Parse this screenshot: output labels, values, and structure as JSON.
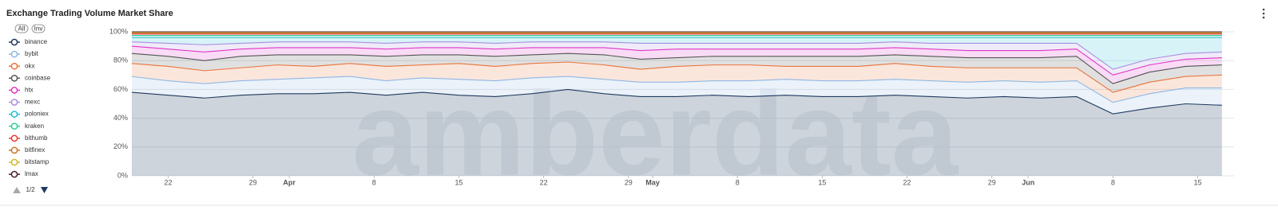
{
  "chart_data": {
    "type": "stacked-area",
    "title": "Exchange Trading Volume Market Share",
    "watermark": "amberdata",
    "buttons": [
      "All",
      "Inv"
    ],
    "legend_page": "1/2",
    "legend": "left",
    "grid": true,
    "x": [
      "03-19",
      "03-22",
      "03-25",
      "03-28",
      "03-31",
      "04-03",
      "04-06",
      "04-09",
      "04-12",
      "04-15",
      "04-18",
      "04-21",
      "04-24",
      "04-27",
      "04-30",
      "05-03",
      "05-06",
      "05-09",
      "05-12",
      "05-15",
      "05-18",
      "05-21",
      "05-24",
      "05-27",
      "05-30",
      "06-02",
      "06-05",
      "06-08",
      "06-11",
      "06-14",
      "06-17"
    ],
    "xlim": [
      "03-19",
      "06-18"
    ],
    "xticks": [
      {
        "value": "03-22",
        "label": "22"
      },
      {
        "value": "03-29",
        "label": "29"
      },
      {
        "value": "04-01",
        "label": "Apr"
      },
      {
        "value": "04-08",
        "label": "8"
      },
      {
        "value": "04-15",
        "label": "15"
      },
      {
        "value": "04-22",
        "label": "22"
      },
      {
        "value": "04-29",
        "label": "29"
      },
      {
        "value": "05-01",
        "label": "May"
      },
      {
        "value": "05-08",
        "label": "8"
      },
      {
        "value": "05-15",
        "label": "15"
      },
      {
        "value": "05-22",
        "label": "22"
      },
      {
        "value": "05-29",
        "label": "29"
      },
      {
        "value": "06-01",
        "label": "Jun"
      },
      {
        "value": "06-08",
        "label": "8"
      },
      {
        "value": "06-15",
        "label": "15"
      }
    ],
    "ylim": [
      0,
      100
    ],
    "yticks": [
      {
        "value": 0,
        "label": "0%"
      },
      {
        "value": 20,
        "label": "20%"
      },
      {
        "value": 40,
        "label": "40%"
      },
      {
        "value": 60,
        "label": "60%"
      },
      {
        "value": 80,
        "label": "80%"
      },
      {
        "value": 100,
        "label": "100%"
      }
    ],
    "series": [
      {
        "name": "binance",
        "color": "#1f3a5f",
        "values": [
          58,
          56,
          54,
          56,
          57,
          57,
          58,
          56,
          58,
          56,
          55,
          57,
          60,
          57,
          55,
          55,
          56,
          55,
          56,
          55,
          55,
          56,
          55,
          54,
          55,
          54,
          55,
          43,
          47,
          50,
          49
        ]
      },
      {
        "name": "bybit",
        "color": "#8fb8e3",
        "values": [
          11,
          10,
          10,
          10,
          10,
          11,
          11,
          10,
          10,
          11,
          11,
          11,
          9,
          10,
          10,
          10,
          10,
          11,
          11,
          11,
          11,
          11,
          11,
          11,
          11,
          11,
          11,
          8,
          10,
          11,
          12
        ]
      },
      {
        "name": "okx",
        "color": "#e8743b",
        "values": [
          9,
          10,
          9,
          9,
          10,
          8,
          9,
          10,
          9,
          11,
          10,
          10,
          10,
          10,
          9,
          11,
          11,
          11,
          9,
          10,
          10,
          11,
          10,
          10,
          9,
          10,
          9,
          7,
          8,
          8,
          9
        ]
      },
      {
        "name": "coinbase",
        "color": "#555555",
        "values": [
          7,
          7,
          7,
          8,
          7,
          8,
          6,
          7,
          7,
          6,
          7,
          6,
          6,
          7,
          7,
          6,
          6,
          6,
          7,
          7,
          7,
          6,
          7,
          7,
          7,
          7,
          8,
          6,
          7,
          7,
          7
        ]
      },
      {
        "name": "htx",
        "color": "#e036c8",
        "values": [
          5,
          5,
          6,
          5,
          5,
          5,
          5,
          5,
          5,
          5,
          5,
          5,
          4,
          5,
          6,
          6,
          5,
          5,
          5,
          5,
          5,
          5,
          5,
          5,
          5,
          5,
          5,
          6,
          5,
          5,
          5
        ]
      },
      {
        "name": "mexc",
        "color": "#a98fe0",
        "values": [
          3,
          4,
          5,
          4,
          4,
          4,
          4,
          4,
          4,
          4,
          4,
          4,
          4,
          4,
          5,
          4,
          4,
          4,
          4,
          4,
          4,
          4,
          4,
          5,
          5,
          5,
          4,
          4,
          4,
          4,
          4
        ]
      },
      {
        "name": "poloniex",
        "color": "#22bcd4",
        "values": [
          3,
          4,
          5,
          4,
          3,
          3,
          3,
          4,
          3,
          3,
          4,
          3,
          3,
          3,
          4,
          4,
          4,
          4,
          4,
          4,
          4,
          3,
          4,
          4,
          4,
          4,
          4,
          22,
          15,
          11,
          10
        ]
      },
      {
        "name": "kraken",
        "color": "#2ecc9a",
        "values": [
          1.5,
          1.5,
          1.5,
          1.5,
          1.5,
          1.5,
          1.5,
          1.5,
          1.5,
          1.5,
          1.5,
          1.5,
          1.5,
          1.5,
          1.5,
          1.5,
          1.5,
          1.5,
          1.5,
          1.5,
          1.5,
          1.5,
          1.5,
          1.5,
          1.5,
          1.5,
          1.5,
          1.5,
          1.5,
          1.5,
          1.5
        ]
      },
      {
        "name": "bithumb",
        "color": "#e53935",
        "values": [
          1,
          1,
          1,
          1,
          1,
          1,
          1,
          1,
          1,
          1,
          1,
          1,
          1,
          1,
          1,
          1,
          1,
          1,
          1,
          1,
          1,
          1,
          1,
          1,
          1,
          1,
          1,
          1,
          1,
          1,
          1
        ]
      },
      {
        "name": "bitfinex",
        "color": "#c8782a",
        "values": [
          0.8,
          0.8,
          0.8,
          0.8,
          0.8,
          0.8,
          0.8,
          0.8,
          0.8,
          0.8,
          0.8,
          0.8,
          0.8,
          0.8,
          0.8,
          0.8,
          0.8,
          0.8,
          0.8,
          0.8,
          0.8,
          0.8,
          0.8,
          0.8,
          0.8,
          0.8,
          0.8,
          0.8,
          0.8,
          0.8,
          0.8
        ]
      },
      {
        "name": "bitstamp",
        "color": "#d4b82a",
        "values": [
          0.4,
          0.4,
          0.4,
          0.4,
          0.4,
          0.4,
          0.4,
          0.4,
          0.4,
          0.4,
          0.4,
          0.4,
          0.4,
          0.4,
          0.4,
          0.4,
          0.4,
          0.4,
          0.4,
          0.4,
          0.4,
          0.4,
          0.4,
          0.4,
          0.4,
          0.4,
          0.4,
          0.4,
          0.4,
          0.4,
          0.4
        ]
      },
      {
        "name": "lmax",
        "color": "#4a1f2a",
        "values": [
          0.3,
          0.3,
          0.3,
          0.3,
          0.3,
          0.3,
          0.3,
          0.3,
          0.3,
          0.3,
          0.3,
          0.3,
          0.3,
          0.3,
          0.3,
          0.3,
          0.3,
          0.3,
          0.3,
          0.3,
          0.3,
          0.3,
          0.3,
          0.3,
          0.3,
          0.3,
          0.3,
          0.3,
          0.3,
          0.3,
          0.3
        ]
      }
    ]
  }
}
